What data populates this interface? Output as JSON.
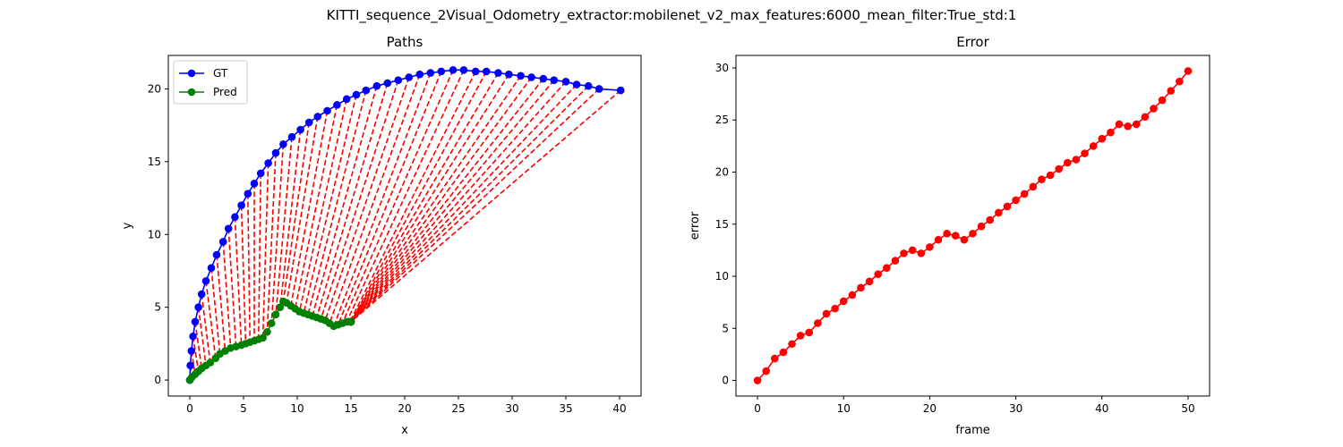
{
  "figure": {
    "suptitle": "KITTI_sequence_2Visual_Odometry_extractor:mobilenet_v2_max_features:6000_mean_filter:True_std:1"
  },
  "chart_data": [
    {
      "type": "line",
      "title": "Paths",
      "xlabel": "x",
      "ylabel": "y",
      "xlim": [
        -2.0,
        42.0
      ],
      "ylim": [
        -1.1,
        22.3
      ],
      "xticks": [
        0,
        5,
        10,
        15,
        20,
        25,
        30,
        35,
        40
      ],
      "yticks": [
        0,
        5,
        10,
        15,
        20
      ],
      "legend": {
        "location": "upper left",
        "entries": [
          "GT",
          "Pred"
        ]
      },
      "series": [
        {
          "name": "GT",
          "color": "#0000ff",
          "marker": "circle",
          "x": [
            0,
            0.05,
            0.15,
            0.3,
            0.5,
            0.8,
            1.1,
            1.5,
            2.0,
            2.5,
            3.1,
            3.6,
            4.2,
            4.8,
            5.4,
            6.0,
            6.6,
            7.3,
            8.0,
            8.7,
            9.5,
            10.3,
            11.1,
            11.9,
            12.8,
            13.7,
            14.6,
            15.5,
            16.4,
            17.4,
            18.4,
            19.4,
            20.4,
            21.4,
            22.4,
            23.4,
            24.5,
            25.5,
            26.6,
            27.6,
            28.7,
            29.7,
            30.8,
            31.8,
            32.9,
            33.9,
            35.0,
            36.0,
            37.1,
            38.1,
            40.1
          ],
          "y": [
            0,
            1.0,
            2.0,
            3.0,
            4.0,
            5.0,
            5.9,
            6.8,
            7.7,
            8.6,
            9.5,
            10.4,
            11.2,
            12.0,
            12.8,
            13.5,
            14.2,
            14.9,
            15.6,
            16.2,
            16.7,
            17.2,
            17.7,
            18.1,
            18.5,
            18.9,
            19.3,
            19.6,
            19.9,
            20.2,
            20.4,
            20.6,
            20.8,
            21.0,
            21.1,
            21.2,
            21.3,
            21.3,
            21.2,
            21.2,
            21.1,
            21.0,
            20.9,
            20.8,
            20.7,
            20.6,
            20.5,
            20.3,
            20.2,
            20.0,
            19.9
          ]
        },
        {
          "name": "Pred",
          "color": "#008000",
          "marker": "circle",
          "x": [
            0,
            0.2,
            0.5,
            0.8,
            1.1,
            1.5,
            1.9,
            2.4,
            2.8,
            3.3,
            3.8,
            4.3,
            4.8,
            5.2,
            5.6,
            6.0,
            6.4,
            6.8,
            7.2,
            7.6,
            8.0,
            8.4,
            8.7,
            9.0,
            9.4,
            9.8,
            10.2,
            10.6,
            11.0,
            11.4,
            11.8,
            12.2,
            12.6,
            13.0,
            13.4,
            13.8,
            14.2,
            14.6,
            14.9,
            15.0,
            15.0,
            15.0,
            15.0,
            15.0,
            15.0,
            15.0,
            15.0,
            15.0,
            15.0,
            15.0,
            15.0
          ],
          "y": [
            0,
            0.2,
            0.4,
            0.6,
            0.8,
            1.0,
            1.2,
            1.5,
            1.8,
            2.0,
            2.2,
            2.3,
            2.4,
            2.5,
            2.6,
            2.7,
            2.8,
            2.9,
            3.3,
            3.9,
            4.5,
            5.0,
            5.4,
            5.3,
            5.1,
            4.9,
            4.7,
            4.6,
            4.5,
            4.4,
            4.3,
            4.2,
            4.1,
            3.9,
            3.7,
            3.8,
            3.9,
            4.0,
            4.0,
            4.0,
            4.0,
            4.0,
            4.0,
            4.0,
            4.0,
            4.0,
            4.0,
            4.0,
            4.0,
            4.0,
            4.0
          ]
        }
      ],
      "error_lines": {
        "color": "#ff0000",
        "style": "dashed"
      }
    },
    {
      "type": "line",
      "title": "Error",
      "xlabel": "frame",
      "ylabel": "error",
      "xlim": [
        -2.5,
        52.5
      ],
      "ylim": [
        -1.5,
        31.2
      ],
      "xticks": [
        0,
        10,
        20,
        30,
        40,
        50
      ],
      "yticks": [
        0,
        5,
        10,
        15,
        20,
        25,
        30
      ],
      "series": [
        {
          "color": "#ff0000",
          "marker": "circle",
          "x": [
            0,
            1,
            2,
            3,
            4,
            5,
            6,
            7,
            8,
            9,
            10,
            11,
            12,
            13,
            14,
            15,
            16,
            17,
            18,
            19,
            20,
            21,
            22,
            23,
            24,
            25,
            26,
            27,
            28,
            29,
            30,
            31,
            32,
            33,
            34,
            35,
            36,
            37,
            38,
            39,
            40,
            41,
            42,
            43,
            44,
            45,
            46,
            47,
            48,
            49,
            50
          ],
          "values": [
            0,
            0.9,
            2.1,
            2.7,
            3.5,
            4.3,
            4.6,
            5.5,
            6.4,
            6.9,
            7.6,
            8.2,
            8.9,
            9.5,
            10.2,
            10.8,
            11.5,
            12.2,
            12.5,
            12.2,
            12.8,
            13.5,
            14.1,
            13.9,
            13.5,
            14.1,
            14.8,
            15.4,
            16.1,
            16.7,
            17.3,
            17.9,
            18.6,
            19.3,
            19.7,
            20.3,
            20.9,
            21.2,
            21.8,
            22.5,
            23.2,
            23.8,
            24.6,
            24.4,
            24.6,
            25.3,
            26.1,
            26.9,
            27.8,
            28.7,
            29.7
          ]
        }
      ]
    }
  ]
}
